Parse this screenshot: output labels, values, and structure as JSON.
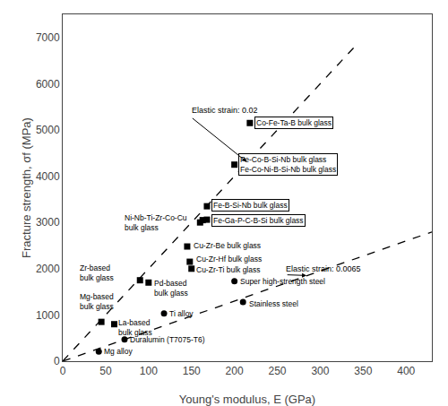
{
  "chart_data": {
    "type": "scatter",
    "xlabel": "Young's modulus, E (GPa)",
    "ylabel": "Fracture strength, σf (MPa)",
    "xlim": [
      0,
      430
    ],
    "ylim": [
      0,
      7500
    ],
    "xticks": [
      0,
      50,
      100,
      150,
      200,
      250,
      300,
      350,
      400
    ],
    "yticks": [
      0,
      1000,
      2000,
      3000,
      4000,
      5000,
      6000,
      7000
    ],
    "grid": false,
    "series": [
      {
        "type": "line",
        "line_style": "dashed",
        "color": "#000000",
        "x": [
          0,
          340
        ],
        "values": [
          0,
          6800
        ]
      },
      {
        "type": "line",
        "line_style": "dashed",
        "color": "#000000",
        "x": [
          0,
          430
        ],
        "values": [
          0,
          2795
        ]
      },
      {
        "type": "scatter",
        "marker": "square",
        "color": "#000000",
        "x": [
          45,
          60,
          90,
          100,
          145,
          148,
          150,
          160,
          163,
          168,
          168,
          200,
          218
        ],
        "values": [
          850,
          800,
          1750,
          1700,
          2480,
          2150,
          2000,
          3000,
          3050,
          3350,
          3060,
          4250,
          5150
        ]
      },
      {
        "type": "scatter",
        "marker": "circle",
        "color": "#000000",
        "x": [
          42,
          72,
          118,
          200,
          210
        ],
        "values": [
          210,
          470,
          1030,
          1730,
          1280
        ]
      }
    ],
    "annotations": [
      {
        "text": "Elastic strain: 0.02",
        "x": 148,
        "y": 5300,
        "arrow_x": 215,
        "arrow_y": 4300
      },
      {
        "text": "Elastic strain: 0.0065",
        "x": 258,
        "y": 1870,
        "arrow_x": 285,
        "arrow_y": 1852.5
      }
    ],
    "labels": [
      {
        "text": "Mg-based\nbulk glass",
        "x": 18,
        "y": 1280
      },
      {
        "text": "La-based\nbulk glass",
        "x": 63,
        "y": 720
      },
      {
        "text": "Zr-based\nbulk glass",
        "x": 18,
        "y": 1900
      },
      {
        "text": "Pd-based\nbulk glass",
        "x": 104,
        "y": 1580
      },
      {
        "text": "Cu-Zr-Be bulk glass",
        "x": 150,
        "y": 2500
      },
      {
        "text": "Cu-Zr-Hf bulk glass",
        "x": 153,
        "y": 2200
      },
      {
        "text": "Cu-Zr-Ti bulk glass",
        "x": 153,
        "y": 1980
      },
      {
        "text": "Ni-Nb-Ti-Zr-Co-Cu\nbulk glass",
        "x": 70,
        "y": 2990
      },
      {
        "text": "Mg alloy",
        "x": 46,
        "y": 210
      },
      {
        "text": "Duralumin (T7075-T6)",
        "x": 76,
        "y": 470
      },
      {
        "text": "Ti alloy",
        "x": 122,
        "y": 1030
      },
      {
        "text": "Super high-strength steel",
        "x": 205,
        "y": 1730
      },
      {
        "text": "Stainless steel",
        "x": 215,
        "y": 1250
      }
    ],
    "boxed_labels": [
      {
        "text": "Co-Fe-Ta-B bulk glass",
        "x": 223,
        "y": 5150
      },
      {
        "text": "Fe-Co-B-Si-Nb bulk glass\nFe-Co-Ni-B-Si-Nb bulk glass",
        "x": 205,
        "y": 4250
      },
      {
        "text": "Fe-B-Si-Nb bulk glass",
        "x": 173,
        "y": 3370
      },
      {
        "text": "Fe-Ga-P-C-B-Si bulk glass",
        "x": 173,
        "y": 3040
      }
    ]
  }
}
